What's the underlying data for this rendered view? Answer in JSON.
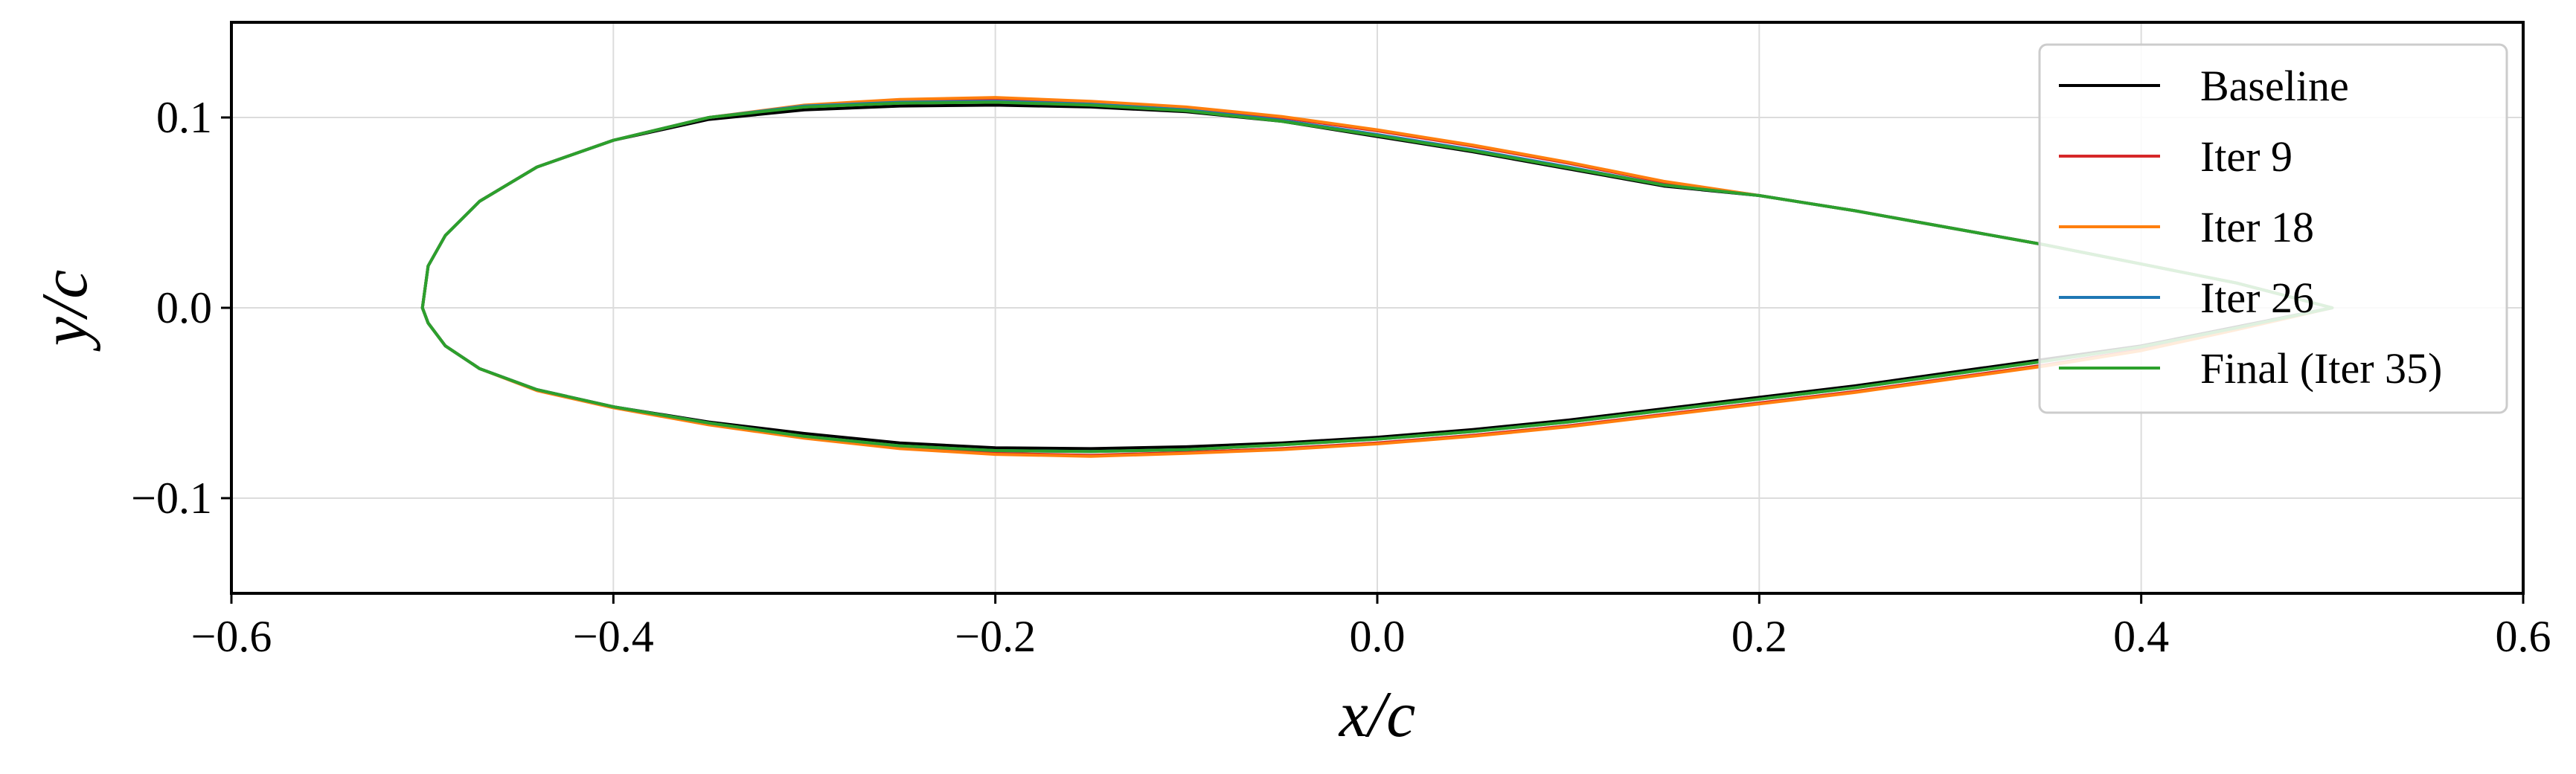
{
  "chart_data": {
    "type": "line",
    "title": "",
    "xlabel": "x/c",
    "ylabel": "y/c",
    "xlim": [
      -0.6,
      0.6
    ],
    "ylim": [
      -0.15,
      0.15
    ],
    "xticks": [
      -0.6,
      -0.4,
      -0.2,
      0.0,
      0.2,
      0.4,
      0.6
    ],
    "xtick_labels": [
      "−0.6",
      "−0.4",
      "−0.2",
      "0.0",
      "0.2",
      "0.4",
      "0.6"
    ],
    "yticks": [
      -0.1,
      0.0,
      0.1
    ],
    "ytick_labels": [
      "−0.1",
      "0.0",
      "0.1"
    ],
    "grid": true,
    "legend_position": "top-right",
    "series": [
      {
        "name": "Baseline",
        "color": "#000000",
        "points": [
          [
            -0.5,
            0.0
          ],
          [
            -0.497,
            0.022
          ],
          [
            -0.488,
            0.038
          ],
          [
            -0.47,
            0.056
          ],
          [
            -0.44,
            0.074
          ],
          [
            -0.4,
            0.088
          ],
          [
            -0.35,
            0.099
          ],
          [
            -0.3,
            0.104
          ],
          [
            -0.25,
            0.106
          ],
          [
            -0.2,
            0.1065
          ],
          [
            -0.15,
            0.1055
          ],
          [
            -0.1,
            0.103
          ],
          [
            -0.05,
            0.098
          ],
          [
            0.0,
            0.09
          ],
          [
            0.05,
            0.082
          ],
          [
            0.1,
            0.073
          ],
          [
            0.15,
            0.064
          ],
          [
            0.2,
            0.059
          ],
          [
            0.25,
            0.051
          ],
          [
            0.3,
            0.042
          ],
          [
            0.35,
            0.033
          ],
          [
            0.4,
            0.023
          ],
          [
            0.45,
            0.013
          ],
          [
            0.5,
            0.0
          ],
          [
            0.45,
            -0.01
          ],
          [
            0.4,
            -0.02
          ],
          [
            0.35,
            -0.027
          ],
          [
            0.3,
            -0.034
          ],
          [
            0.25,
            -0.041
          ],
          [
            0.2,
            -0.047
          ],
          [
            0.15,
            -0.053
          ],
          [
            0.1,
            -0.059
          ],
          [
            0.05,
            -0.064
          ],
          [
            0.0,
            -0.068
          ],
          [
            -0.05,
            -0.071
          ],
          [
            -0.1,
            -0.073
          ],
          [
            -0.15,
            -0.074
          ],
          [
            -0.2,
            -0.0735
          ],
          [
            -0.25,
            -0.071
          ],
          [
            -0.3,
            -0.066
          ],
          [
            -0.35,
            -0.06
          ],
          [
            -0.4,
            -0.052
          ],
          [
            -0.44,
            -0.043
          ],
          [
            -0.47,
            -0.032
          ],
          [
            -0.488,
            -0.02
          ],
          [
            -0.497,
            -0.008
          ],
          [
            -0.5,
            0.0
          ]
        ]
      },
      {
        "name": "Iter 9",
        "color": "#d62728",
        "points": [
          [
            -0.5,
            0.0
          ],
          [
            -0.497,
            0.022
          ],
          [
            -0.488,
            0.038
          ],
          [
            -0.47,
            0.056
          ],
          [
            -0.44,
            0.074
          ],
          [
            -0.4,
            0.088
          ],
          [
            -0.35,
            0.1
          ],
          [
            -0.3,
            0.106
          ],
          [
            -0.25,
            0.109
          ],
          [
            -0.2,
            0.11
          ],
          [
            -0.15,
            0.108
          ],
          [
            -0.1,
            0.105
          ],
          [
            -0.05,
            0.1
          ],
          [
            0.0,
            0.093
          ],
          [
            0.05,
            0.085
          ],
          [
            0.1,
            0.076
          ],
          [
            0.15,
            0.066
          ],
          [
            0.2,
            0.059
          ],
          [
            0.25,
            0.051
          ],
          [
            0.3,
            0.042
          ],
          [
            0.35,
            0.033
          ],
          [
            0.4,
            0.023
          ],
          [
            0.45,
            0.013
          ],
          [
            0.5,
            0.0
          ],
          [
            0.45,
            -0.011
          ],
          [
            0.4,
            -0.022
          ],
          [
            0.35,
            -0.03
          ],
          [
            0.3,
            -0.037
          ],
          [
            0.25,
            -0.044
          ],
          [
            0.2,
            -0.05
          ],
          [
            0.15,
            -0.056
          ],
          [
            0.1,
            -0.062
          ],
          [
            0.05,
            -0.067
          ],
          [
            0.0,
            -0.071
          ],
          [
            -0.05,
            -0.074
          ],
          [
            -0.1,
            -0.076
          ],
          [
            -0.15,
            -0.0775
          ],
          [
            -0.2,
            -0.0765
          ],
          [
            -0.25,
            -0.0735
          ],
          [
            -0.3,
            -0.068
          ],
          [
            -0.35,
            -0.061
          ],
          [
            -0.4,
            -0.052
          ],
          [
            -0.44,
            -0.043
          ],
          [
            -0.47,
            -0.032
          ],
          [
            -0.488,
            -0.02
          ],
          [
            -0.497,
            -0.008
          ],
          [
            -0.5,
            0.0
          ]
        ]
      },
      {
        "name": "Iter 18",
        "color": "#ff7f0e",
        "points": [
          [
            -0.5,
            0.0
          ],
          [
            -0.497,
            0.022
          ],
          [
            -0.488,
            0.038
          ],
          [
            -0.47,
            0.056
          ],
          [
            -0.44,
            0.074
          ],
          [
            -0.4,
            0.088
          ],
          [
            -0.35,
            0.1
          ],
          [
            -0.3,
            0.1065
          ],
          [
            -0.25,
            0.1095
          ],
          [
            -0.2,
            0.1105
          ],
          [
            -0.15,
            0.1085
          ],
          [
            -0.1,
            0.1055
          ],
          [
            -0.05,
            0.1005
          ],
          [
            0.0,
            0.0935
          ],
          [
            0.05,
            0.0855
          ],
          [
            0.1,
            0.0765
          ],
          [
            0.15,
            0.0665
          ],
          [
            0.2,
            0.059
          ],
          [
            0.25,
            0.051
          ],
          [
            0.3,
            0.042
          ],
          [
            0.35,
            0.033
          ],
          [
            0.4,
            0.023
          ],
          [
            0.45,
            0.013
          ],
          [
            0.5,
            0.0
          ],
          [
            0.45,
            -0.0115
          ],
          [
            0.4,
            -0.0225
          ],
          [
            0.35,
            -0.0305
          ],
          [
            0.3,
            -0.0375
          ],
          [
            0.25,
            -0.0445
          ],
          [
            0.2,
            -0.0505
          ],
          [
            0.15,
            -0.0565
          ],
          [
            0.1,
            -0.0625
          ],
          [
            0.05,
            -0.0675
          ],
          [
            0.0,
            -0.0715
          ],
          [
            -0.05,
            -0.0745
          ],
          [
            -0.1,
            -0.0765
          ],
          [
            -0.15,
            -0.078
          ],
          [
            -0.2,
            -0.077
          ],
          [
            -0.25,
            -0.074
          ],
          [
            -0.3,
            -0.0685
          ],
          [
            -0.35,
            -0.0615
          ],
          [
            -0.4,
            -0.0525
          ],
          [
            -0.44,
            -0.0435
          ],
          [
            -0.47,
            -0.032
          ],
          [
            -0.488,
            -0.02
          ],
          [
            -0.497,
            -0.008
          ],
          [
            -0.5,
            0.0
          ]
        ]
      },
      {
        "name": "Iter 26",
        "color": "#1f77b4",
        "points": [
          [
            -0.5,
            0.0
          ],
          [
            -0.497,
            0.022
          ],
          [
            -0.488,
            0.038
          ],
          [
            -0.47,
            0.056
          ],
          [
            -0.44,
            0.074
          ],
          [
            -0.4,
            0.088
          ],
          [
            -0.35,
            0.1
          ],
          [
            -0.3,
            0.106
          ],
          [
            -0.25,
            0.108
          ],
          [
            -0.2,
            0.1085
          ],
          [
            -0.15,
            0.107
          ],
          [
            -0.1,
            0.104
          ],
          [
            -0.05,
            0.0985
          ],
          [
            0.0,
            0.091
          ],
          [
            0.05,
            0.083
          ],
          [
            0.1,
            0.074
          ],
          [
            0.15,
            0.0645
          ],
          [
            0.2,
            0.059
          ],
          [
            0.25,
            0.051
          ],
          [
            0.3,
            0.042
          ],
          [
            0.35,
            0.033
          ],
          [
            0.4,
            0.023
          ],
          [
            0.45,
            0.013
          ],
          [
            0.5,
            0.0
          ],
          [
            0.45,
            -0.0105
          ],
          [
            0.4,
            -0.0205
          ],
          [
            0.35,
            -0.028
          ],
          [
            0.3,
            -0.035
          ],
          [
            0.25,
            -0.042
          ],
          [
            0.2,
            -0.048
          ],
          [
            0.15,
            -0.054
          ],
          [
            0.1,
            -0.06
          ],
          [
            0.05,
            -0.065
          ],
          [
            0.0,
            -0.069
          ],
          [
            -0.05,
            -0.072
          ],
          [
            -0.1,
            -0.0745
          ],
          [
            -0.15,
            -0.0755
          ],
          [
            -0.2,
            -0.075
          ],
          [
            -0.25,
            -0.0725
          ],
          [
            -0.3,
            -0.0675
          ],
          [
            -0.35,
            -0.0605
          ],
          [
            -0.4,
            -0.052
          ],
          [
            -0.44,
            -0.043
          ],
          [
            -0.47,
            -0.032
          ],
          [
            -0.488,
            -0.02
          ],
          [
            -0.497,
            -0.008
          ],
          [
            -0.5,
            0.0
          ]
        ]
      },
      {
        "name": "Final (Iter 35)",
        "color": "#2ca02c",
        "points": [
          [
            -0.5,
            0.0
          ],
          [
            -0.497,
            0.022
          ],
          [
            -0.488,
            0.038
          ],
          [
            -0.47,
            0.056
          ],
          [
            -0.44,
            0.074
          ],
          [
            -0.4,
            0.088
          ],
          [
            -0.35,
            0.1
          ],
          [
            -0.3,
            0.1055
          ],
          [
            -0.25,
            0.1075
          ],
          [
            -0.2,
            0.108
          ],
          [
            -0.15,
            0.1065
          ],
          [
            -0.1,
            0.1035
          ],
          [
            -0.05,
            0.098
          ],
          [
            0.0,
            0.0905
          ],
          [
            0.05,
            0.0825
          ],
          [
            0.1,
            0.0735
          ],
          [
            0.15,
            0.0645
          ],
          [
            0.2,
            0.059
          ],
          [
            0.25,
            0.051
          ],
          [
            0.3,
            0.042
          ],
          [
            0.35,
            0.033
          ],
          [
            0.4,
            0.023
          ],
          [
            0.45,
            0.013
          ],
          [
            0.5,
            0.0
          ],
          [
            0.45,
            -0.0105
          ],
          [
            0.4,
            -0.0205
          ],
          [
            0.35,
            -0.028
          ],
          [
            0.3,
            -0.035
          ],
          [
            0.25,
            -0.042
          ],
          [
            0.2,
            -0.048
          ],
          [
            0.15,
            -0.054
          ],
          [
            0.1,
            -0.06
          ],
          [
            0.05,
            -0.065
          ],
          [
            0.0,
            -0.069
          ],
          [
            -0.05,
            -0.072
          ],
          [
            -0.1,
            -0.0745
          ],
          [
            -0.15,
            -0.0755
          ],
          [
            -0.2,
            -0.075
          ],
          [
            -0.25,
            -0.0725
          ],
          [
            -0.3,
            -0.0675
          ],
          [
            -0.35,
            -0.0605
          ],
          [
            -0.4,
            -0.052
          ],
          [
            -0.44,
            -0.043
          ],
          [
            -0.47,
            -0.032
          ],
          [
            -0.488,
            -0.02
          ],
          [
            -0.497,
            -0.008
          ],
          [
            -0.5,
            0.0
          ]
        ]
      }
    ]
  }
}
